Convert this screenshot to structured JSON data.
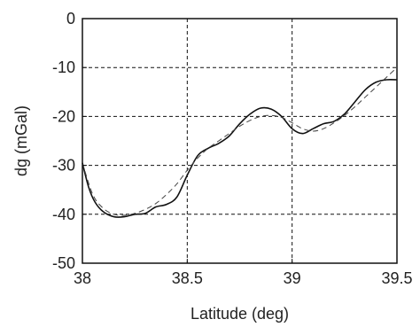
{
  "chart_data": {
    "type": "line",
    "xlabel": "Latitude (deg)",
    "ylabel": "dg (mGal)",
    "xlim": [
      38,
      39.5
    ],
    "ylim": [
      -50,
      0
    ],
    "xticks": [
      38,
      38.5,
      39,
      39.5
    ],
    "xtick_labels": [
      "38",
      "38.5",
      "39",
      "39.5"
    ],
    "yticks": [
      0,
      -10,
      -20,
      -30,
      -40,
      -50
    ],
    "ytick_labels": [
      "0",
      "-10",
      "-20",
      "-30",
      "-40",
      "-50"
    ],
    "grid": true,
    "grid_style": "dashed",
    "legend": false,
    "series": [
      {
        "style": "solid",
        "color": "#111111",
        "x": [
          38.0,
          38.03,
          38.06,
          38.1,
          38.15,
          38.2,
          38.25,
          38.3,
          38.35,
          38.4,
          38.45,
          38.5,
          38.55,
          38.6,
          38.65,
          38.7,
          38.75,
          38.8,
          38.85,
          38.9,
          38.95,
          39.0,
          39.05,
          39.1,
          39.15,
          39.2,
          39.25,
          39.3,
          39.35,
          39.4,
          39.45,
          39.5
        ],
        "y": [
          -29.5,
          -34.5,
          -37.5,
          -39.5,
          -40.5,
          -40.5,
          -40.0,
          -39.8,
          -38.5,
          -38.0,
          -36.5,
          -32.0,
          -28.0,
          -26.5,
          -25.5,
          -24.0,
          -21.5,
          -19.5,
          -18.3,
          -18.5,
          -20.0,
          -22.5,
          -23.5,
          -22.5,
          -21.5,
          -21.0,
          -19.5,
          -17.0,
          -14.5,
          -13.0,
          -12.5,
          -12.5
        ]
      },
      {
        "style": "dashed",
        "color": "#444444",
        "x": [
          38.0,
          38.05,
          38.1,
          38.15,
          38.2,
          38.25,
          38.3,
          38.35,
          38.4,
          38.45,
          38.5,
          38.55,
          38.6,
          38.65,
          38.7,
          38.75,
          38.8,
          38.85,
          38.9,
          38.95,
          39.0,
          39.05,
          39.1,
          39.15,
          39.2,
          39.25,
          39.3,
          39.35,
          39.4,
          39.45,
          39.5
        ],
        "y": [
          -29.5,
          -36.0,
          -38.8,
          -40.0,
          -40.2,
          -39.8,
          -39.0,
          -37.8,
          -36.0,
          -33.8,
          -31.0,
          -28.5,
          -26.5,
          -25.0,
          -23.5,
          -22.0,
          -20.8,
          -20.0,
          -19.8,
          -20.2,
          -21.3,
          -22.5,
          -23.0,
          -22.5,
          -21.3,
          -19.8,
          -18.0,
          -16.0,
          -14.0,
          -12.0,
          -10.0
        ]
      }
    ]
  }
}
